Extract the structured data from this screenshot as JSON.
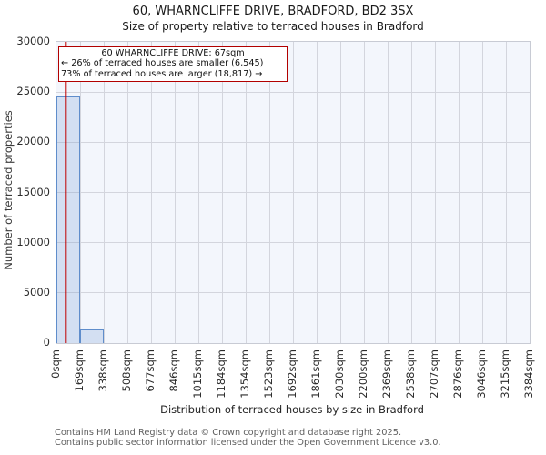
{
  "title": {
    "line1": "60, WHARNCLIFFE DRIVE, BRADFORD, BD2 3SX",
    "line2": "Size of property relative to terraced houses in Bradford"
  },
  "chart_data": {
    "type": "bar",
    "title": "60, WHARNCLIFFE DRIVE, BRADFORD, BD2 3SX",
    "subtitle": "Size of property relative to terraced houses in Bradford",
    "xlabel": "Distribution of terraced houses by size in Bradford",
    "ylabel": "Number of terraced properties",
    "xlim": [
      0,
      3384
    ],
    "ylim": [
      0,
      30000
    ],
    "yticks": [
      0,
      5000,
      10000,
      15000,
      20000,
      25000,
      30000
    ],
    "grid": true,
    "bin_width_sqm": 169,
    "categories": [
      "0sqm",
      "169sqm",
      "338sqm",
      "508sqm",
      "677sqm",
      "846sqm",
      "1015sqm",
      "1184sqm",
      "1354sqm",
      "1523sqm",
      "1692sqm",
      "1861sqm",
      "2030sqm",
      "2200sqm",
      "2369sqm",
      "2538sqm",
      "2707sqm",
      "2876sqm",
      "3046sqm",
      "3215sqm",
      "3384sqm"
    ],
    "values": [
      24550,
      1380,
      0,
      0,
      0,
      0,
      0,
      0,
      0,
      0,
      0,
      0,
      0,
      0,
      0,
      0,
      0,
      0,
      0,
      0
    ],
    "marker": {
      "label": "60 WHARNCLIFFE DRIVE",
      "value_sqm": 67,
      "color": "#c00000"
    },
    "annotation": {
      "line1": "60 WHARNCLIFFE DRIVE: 67sqm",
      "line2": "← 26% of terraced houses are smaller (6,545)",
      "line3": "73% of terraced houses are larger (18,817) →"
    },
    "colors": {
      "bar_fill": "#d3dff2",
      "bar_edge": "#5f8dcb",
      "plot_bg": "#f3f6fc",
      "grid": "#d3d5dd",
      "marker_line": "#c00000",
      "annotation_border": "#b20000"
    }
  },
  "footer": {
    "line1": "Contains HM Land Registry data © Crown copyright and database right 2025.",
    "line2": "Contains public sector information licensed under the Open Government Licence v3.0."
  }
}
